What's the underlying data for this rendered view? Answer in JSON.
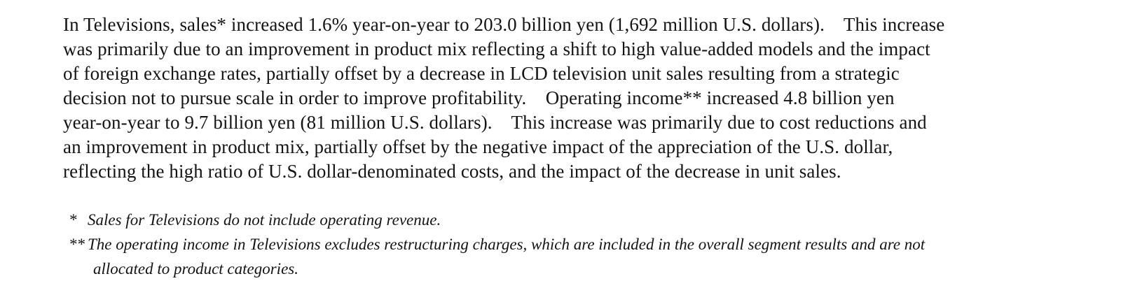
{
  "document": {
    "colors": {
      "background": "#ffffff",
      "text": "#141414"
    },
    "paragraph": {
      "lines": [
        "In Televisions, sales* increased 1.6% year-on-year to 203.0 billion yen (1,692 million U.S. dollars).    This increase",
        "was primarily due to an improvement in product mix reflecting a shift to high value-added models and the impact",
        "of foreign exchange rates, partially offset by a decrease in LCD television unit sales resulting from a strategic",
        "decision not to pursue scale in order to improve profitability.    Operating income** increased 4.8 billion yen",
        "year-on-year to 9.7 billion yen (81 million U.S. dollars).    This increase was primarily due to cost reductions and",
        "an improvement in product mix, partially offset by the negative impact of the appreciation of the U.S. dollar,",
        "reflecting the high ratio of U.S. dollar-denominated costs, and the impact of the decrease in unit sales."
      ]
    },
    "footnotes": [
      {
        "marker": "*",
        "lines": [
          "Sales for Televisions do not include operating revenue."
        ]
      },
      {
        "marker": "**",
        "lines": [
          "The operating income in Televisions excludes restructuring charges, which are included in the overall segment results and are not",
          "allocated to product categories."
        ]
      }
    ]
  }
}
